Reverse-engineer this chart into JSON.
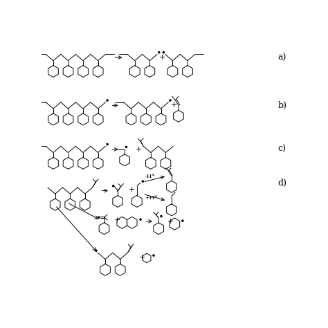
{
  "bg_color": "#ffffff",
  "line_color": "#000000",
  "label_a": "a)",
  "label_b": "b)",
  "label_c": "c)",
  "label_d": "d)",
  "text_color": "#000000",
  "figsize": [
    4.74,
    4.74
  ],
  "dpi": 100,
  "font_size_label": 9,
  "minus_h": "-H*",
  "plus_h": "+H*",
  "xlim": [
    0,
    9.48
  ],
  "ylim": [
    0,
    9.48
  ]
}
